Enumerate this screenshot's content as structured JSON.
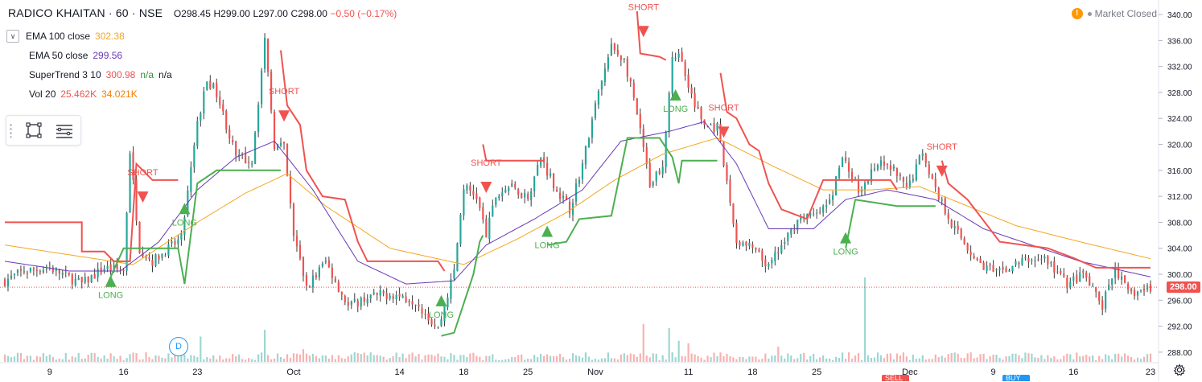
{
  "header": {
    "symbol": "RADICO KHAITAN · 60 · NSE",
    "ohlc": {
      "o": "O298.45",
      "h": "H299.00",
      "l": "L297.00",
      "c": "C298.00",
      "chg": "−0.50 (−0.17%)"
    }
  },
  "legend": [
    {
      "name": "EMA 100 close",
      "values": [
        "302.38"
      ],
      "colors": [
        "#f5a623"
      ],
      "collapse": "∨"
    },
    {
      "name": "EMA 50 close",
      "values": [
        "299.56"
      ],
      "colors": [
        "#673ab7"
      ]
    },
    {
      "name": "SuperTrend 3 10",
      "values": [
        "300.98",
        "n/a",
        "n/a"
      ],
      "colors": [
        "#ef5350",
        "#388e3c",
        "#131722"
      ]
    },
    {
      "name": "Vol 20",
      "values": [
        "25.462K",
        "34.021K"
      ],
      "colors": [
        "#ef5350",
        "#f57c00"
      ]
    }
  ],
  "market_status": {
    "label": "Market Closed",
    "warn": "!"
  },
  "last_price": "298.00",
  "d_marker": "D",
  "bottom_tabs": {
    "sell": "SELL",
    "buy": "BUY"
  },
  "icons": {
    "toolbox": [
      "rectangle-tool-icon",
      "text-lines-icon"
    ],
    "settings": "gear-icon"
  },
  "colors": {
    "up": "#26a69a",
    "down": "#ef5350",
    "wick": "#3a3a3a",
    "ema100": "#f5a623",
    "ema50": "#673ab7",
    "st_down": "#ef5350",
    "st_up": "#4caf50"
  },
  "chart_data": {
    "type": "candlestick",
    "title": "RADICO KHAITAN · 60 · NSE",
    "interval": "60",
    "ylim": [
      286.5,
      341.0
    ],
    "y_ticks": [
      "340.00",
      "336.00",
      "332.00",
      "328.00",
      "324.00",
      "320.00",
      "316.00",
      "312.00",
      "308.00",
      "304.00",
      "300.00",
      "296.00",
      "292.00",
      "288.00"
    ],
    "x_ticks": [
      {
        "label": "9",
        "bar": 14
      },
      {
        "label": "16",
        "bar": 37
      },
      {
        "label": "23",
        "bar": 60
      },
      {
        "label": "Oct",
        "bar": 90
      },
      {
        "label": "14",
        "bar": 123
      },
      {
        "label": "18",
        "bar": 143
      },
      {
        "label": "25",
        "bar": 163
      },
      {
        "label": "Nov",
        "bar": 184
      },
      {
        "label": "11",
        "bar": 213
      },
      {
        "label": "18",
        "bar": 233
      },
      {
        "label": "25",
        "bar": 253
      },
      {
        "label": "Dec",
        "bar": 282
      },
      {
        "label": "9",
        "bar": 308
      },
      {
        "label": "16",
        "bar": 333
      },
      {
        "label": "23",
        "bar": 357
      }
    ],
    "bars_total": 358,
    "close_anchors": [
      [
        0,
        299
      ],
      [
        6,
        300.5
      ],
      [
        14,
        301
      ],
      [
        24,
        298.5
      ],
      [
        31,
        301
      ],
      [
        37,
        300.5
      ],
      [
        39,
        319
      ],
      [
        42,
        304
      ],
      [
        46,
        302
      ],
      [
        55,
        305.5
      ],
      [
        60,
        323
      ],
      [
        63,
        330
      ],
      [
        66,
        328
      ],
      [
        72,
        318
      ],
      [
        77,
        317.5
      ],
      [
        81,
        336
      ],
      [
        84,
        320
      ],
      [
        87,
        319.5
      ],
      [
        90,
        306
      ],
      [
        94,
        298
      ],
      [
        100,
        302
      ],
      [
        107,
        295
      ],
      [
        113,
        296.5
      ],
      [
        120,
        297
      ],
      [
        128,
        296
      ],
      [
        135,
        291.5
      ],
      [
        140,
        300.5
      ],
      [
        143,
        313.5
      ],
      [
        147,
        312
      ],
      [
        150,
        306
      ],
      [
        153,
        312
      ],
      [
        157,
        313.5
      ],
      [
        163,
        312
      ],
      [
        167,
        318
      ],
      [
        172,
        313
      ],
      [
        176,
        310
      ],
      [
        180,
        317
      ],
      [
        185,
        328
      ],
      [
        189,
        335
      ],
      [
        193,
        333
      ],
      [
        196,
        327
      ],
      [
        201,
        314
      ],
      [
        205,
        317
      ],
      [
        208,
        334
      ],
      [
        211,
        333
      ],
      [
        215,
        326
      ],
      [
        218,
        323
      ],
      [
        222,
        322.5
      ],
      [
        225,
        314
      ],
      [
        228,
        305
      ],
      [
        233,
        304
      ],
      [
        238,
        301
      ],
      [
        244,
        306
      ],
      [
        248,
        309
      ],
      [
        253,
        309
      ],
      [
        257,
        311
      ],
      [
        261,
        318
      ],
      [
        266,
        313
      ],
      [
        272,
        317
      ],
      [
        277,
        316
      ],
      [
        281,
        313
      ],
      [
        286,
        319
      ],
      [
        290,
        313
      ],
      [
        296,
        307
      ],
      [
        303,
        302
      ],
      [
        309,
        300
      ],
      [
        317,
        302
      ],
      [
        324,
        302.5
      ],
      [
        331,
        298.5
      ],
      [
        336,
        300
      ],
      [
        342,
        295
      ],
      [
        346,
        301
      ],
      [
        350,
        297
      ],
      [
        355,
        297.5
      ],
      [
        357,
        298
      ]
    ],
    "volume": {
      "spikes": [
        [
          61,
          0.3
        ],
        [
          81,
          0.38
        ],
        [
          93,
          0.15
        ],
        [
          199,
          0.45
        ],
        [
          207,
          0.4
        ],
        [
          210,
          0.25
        ],
        [
          268,
          1.0
        ],
        [
          213,
          0.22
        ],
        [
          241,
          0.18
        ],
        [
          359,
          0.12
        ]
      ]
    },
    "ema100": [
      [
        0,
        304.5
      ],
      [
        20,
        303
      ],
      [
        40,
        301.5
      ],
      [
        60,
        308
      ],
      [
        75,
        312.5
      ],
      [
        88,
        315.5
      ],
      [
        100,
        310.5
      ],
      [
        120,
        304
      ],
      [
        143,
        301.5
      ],
      [
        160,
        305.5
      ],
      [
        175,
        309.5
      ],
      [
        190,
        314.5
      ],
      [
        205,
        318.5
      ],
      [
        222,
        321
      ],
      [
        240,
        316.5
      ],
      [
        255,
        313
      ],
      [
        270,
        313
      ],
      [
        285,
        313.5
      ],
      [
        300,
        310.5
      ],
      [
        315,
        307.5
      ],
      [
        335,
        305
      ],
      [
        357,
        302.4
      ]
    ],
    "ema50": [
      [
        0,
        302
      ],
      [
        20,
        300.5
      ],
      [
        36,
        300.5
      ],
      [
        48,
        305
      ],
      [
        60,
        313
      ],
      [
        72,
        318
      ],
      [
        84,
        320.5
      ],
      [
        96,
        313
      ],
      [
        110,
        302
      ],
      [
        125,
        298.5
      ],
      [
        140,
        299
      ],
      [
        150,
        304.5
      ],
      [
        165,
        308.5
      ],
      [
        180,
        313
      ],
      [
        192,
        320.5
      ],
      [
        207,
        322
      ],
      [
        218,
        323.5
      ],
      [
        228,
        317
      ],
      [
        238,
        307
      ],
      [
        252,
        307
      ],
      [
        262,
        311.5
      ],
      [
        275,
        313
      ],
      [
        290,
        311.5
      ],
      [
        305,
        307
      ],
      [
        320,
        304.5
      ],
      [
        335,
        302
      ],
      [
        357,
        299.6
      ]
    ],
    "supertrend": {
      "down_segments": [
        [
          [
            0,
            308
          ],
          [
            24,
            308
          ],
          [
            24,
            303.5
          ],
          [
            31,
            303.5
          ],
          [
            34,
            302
          ],
          [
            39,
            302
          ],
          [
            41,
            317
          ],
          [
            43,
            316
          ],
          [
            46,
            314.5
          ],
          [
            54,
            314.5
          ]
        ],
        [
          [
            86,
            334.5
          ],
          [
            88,
            326
          ],
          [
            92,
            323
          ],
          [
            94,
            316
          ],
          [
            99,
            312
          ],
          [
            106,
            311.5
          ],
          [
            110,
            305
          ],
          [
            113,
            302
          ],
          [
            135,
            302
          ],
          [
            137,
            300.5
          ]
        ],
        [
          [
            149,
            320
          ],
          [
            150,
            317.5
          ],
          [
            168,
            317.5
          ]
        ],
        [
          [
            197,
            340.5
          ],
          [
            198,
            334
          ],
          [
            204,
            333.5
          ],
          [
            206,
            333
          ]
        ],
        [
          [
            223,
            331
          ],
          [
            225,
            325
          ],
          [
            228,
            324
          ],
          [
            232,
            320
          ],
          [
            235,
            319
          ],
          [
            238,
            314
          ],
          [
            242,
            310
          ],
          [
            250,
            308.5
          ],
          [
            255,
            314.5
          ],
          [
            276,
            314.5
          ],
          [
            278,
            313
          ]
        ],
        [
          [
            292,
            317.5
          ],
          [
            294,
            314
          ],
          [
            300,
            311.5
          ],
          [
            310,
            305
          ],
          [
            325,
            304
          ],
          [
            333,
            302.5
          ],
          [
            340,
            301
          ],
          [
            346,
            301
          ],
          [
            357,
            301
          ]
        ]
      ],
      "up_segments": [
        [
          [
            32,
            298.5
          ],
          [
            37,
            304
          ],
          [
            54,
            304
          ],
          [
            56,
            298.5
          ],
          [
            60,
            314
          ],
          [
            66,
            316
          ],
          [
            86,
            316
          ]
        ],
        [
          [
            136,
            290.5
          ],
          [
            140,
            291
          ],
          [
            146,
            300
          ],
          [
            148,
            305
          ],
          [
            149,
            306
          ]
        ],
        [
          [
            169,
            304.5
          ],
          [
            175,
            305
          ],
          [
            179,
            308.5
          ],
          [
            189,
            309
          ],
          [
            194,
            321
          ],
          [
            204,
            321
          ],
          [
            208,
            318
          ],
          [
            210,
            314
          ],
          [
            211,
            317.5
          ],
          [
            222,
            317.5
          ]
        ],
        [
          [
            262,
            304
          ],
          [
            265,
            311.5
          ],
          [
            278,
            310.5
          ],
          [
            290,
            310.5
          ]
        ]
      ],
      "signals": [
        {
          "type": "long",
          "bar": 33,
          "price": 298.8,
          "label": "LONG"
        },
        {
          "type": "short",
          "bar": 43,
          "price": 312,
          "label": "SHORT"
        },
        {
          "type": "long",
          "bar": 56,
          "price": 310,
          "label": "LONG"
        },
        {
          "type": "short",
          "bar": 87,
          "price": 324.5,
          "label": "SHORT"
        },
        {
          "type": "long",
          "bar": 136,
          "price": 295.8,
          "label": "LONG"
        },
        {
          "type": "short",
          "bar": 150,
          "price": 313.5,
          "label": "SHORT"
        },
        {
          "type": "long",
          "bar": 169,
          "price": 306.5,
          "label": "LONG"
        },
        {
          "type": "short",
          "bar": 199,
          "price": 337.5,
          "label": "SHORT"
        },
        {
          "type": "long",
          "bar": 209,
          "price": 327.5,
          "label": "LONG"
        },
        {
          "type": "short",
          "bar": 224,
          "price": 322,
          "label": "SHORT"
        },
        {
          "type": "long",
          "bar": 262,
          "price": 305.5,
          "label": "LONG"
        },
        {
          "type": "short",
          "bar": 292,
          "price": 316,
          "label": "SHORT"
        }
      ]
    },
    "last_price": 298.0
  }
}
